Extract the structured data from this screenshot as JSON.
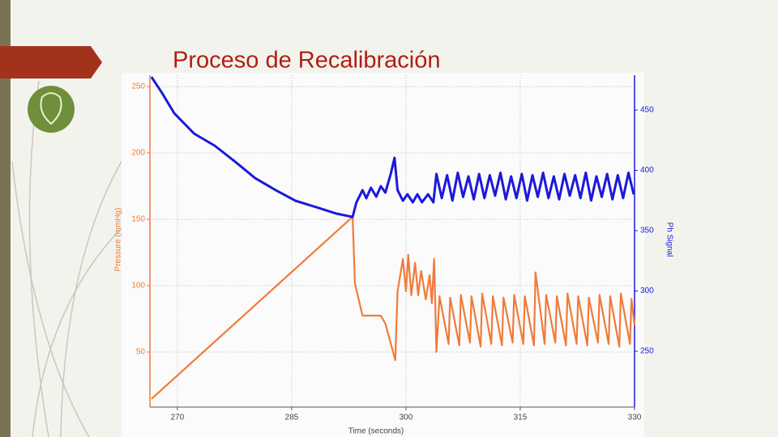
{
  "title": "Proceso de Recalibración",
  "chart_data": {
    "type": "line",
    "xlabel": "Time (seconds)",
    "ylabel": "Pressure (mmHg)",
    "y2label": "Ph Signal",
    "xlim": [
      266.4,
      330
    ],
    "xticks": [
      270,
      285,
      300,
      315,
      330
    ],
    "ylim": [
      8.5,
      258.5
    ],
    "yticks": [
      50,
      100,
      150,
      200,
      250
    ],
    "y2lim": [
      203.7,
      478.9
    ],
    "y2ticks": [
      250,
      300,
      350,
      400,
      450
    ],
    "grid": true,
    "series": [
      {
        "color": "#f07b3a",
        "x": [
          266.6,
          293.0,
          293.3,
          294.3,
          296.7,
          297.3,
          298.6,
          298.9,
          299.6,
          300.0,
          300.3,
          300.7,
          301.2,
          301.6,
          302.0,
          302.6,
          303.1,
          303.4,
          303.7,
          304.0,
          304.4,
          305.6,
          305.8,
          307.0,
          307.2,
          308.4,
          308.6,
          309.8,
          310.0,
          311.2,
          311.4,
          312.6,
          312.8,
          314.0,
          314.2,
          315.4,
          315.6,
          316.8,
          317.0,
          318.2,
          318.4,
          319.6,
          319.8,
          321.0,
          321.2,
          322.4,
          322.6,
          323.8,
          324.0,
          325.2,
          325.4,
          326.6,
          326.8,
          328.0,
          328.2,
          329.4,
          329.6,
          330.0
        ],
        "values": [
          14.6,
          151.8,
          101.8,
          77.4,
          77.4,
          71.3,
          43.9,
          95.7,
          120.1,
          95.7,
          123.2,
          92.7,
          117.1,
          92.7,
          111.0,
          89.6,
          107.9,
          86.6,
          120.1,
          50.0,
          92,
          56,
          91,
          55,
          93,
          57,
          92,
          54,
          94,
          56,
          92,
          55,
          91,
          57,
          93,
          56,
          92,
          55,
          110,
          56,
          93,
          57,
          92,
          55,
          94,
          56,
          92,
          55,
          91,
          57,
          93,
          56,
          92,
          54,
          94,
          56,
          90,
          70
        ]
      },
      {
        "color": "#1a1adb",
        "axis": "y2",
        "x": [
          266.6,
          268.0,
          269.6,
          272.2,
          274.9,
          277.6,
          280.2,
          282.9,
          285.5,
          288.2,
          290.9,
          293.0,
          293.5,
          294.3,
          294.8,
          295.4,
          296.1,
          296.7,
          297.3,
          298.0,
          298.5,
          298.9,
          299.6,
          300.2,
          300.9,
          301.5,
          302.1,
          302.9,
          303.6,
          304.0,
          304.7,
          305.4,
          306.1,
          306.8,
          307.5,
          308.2,
          308.9,
          309.6,
          310.3,
          311.0,
          311.7,
          312.4,
          313.1,
          313.8,
          314.5,
          315.2,
          315.9,
          316.6,
          317.3,
          318.0,
          318.7,
          319.4,
          320.1,
          320.8,
          321.5,
          322.2,
          322.9,
          323.6,
          324.3,
          325.0,
          325.7,
          326.4,
          327.1,
          327.8,
          328.5,
          329.2,
          329.9
        ],
        "values": [
          477.5,
          464.1,
          447.3,
          430.5,
          420.5,
          407.1,
          393.6,
          383.6,
          374.8,
          369.5,
          364.1,
          361.4,
          373.5,
          383.6,
          376.9,
          385.6,
          378.2,
          386.9,
          381.6,
          397.0,
          410.4,
          383.6,
          374.8,
          380.2,
          373.5,
          380.2,
          373.5,
          380.2,
          373.5,
          397.0,
          377,
          396,
          375,
          398,
          378,
          395,
          376,
          397,
          377,
          396,
          379,
          398,
          376,
          395,
          377,
          397,
          375,
          396,
          378,
          398,
          377,
          395,
          376,
          397,
          379,
          396,
          377,
          398,
          375,
          395,
          378,
          397,
          376,
          396,
          377,
          398,
          380
        ]
      }
    ]
  }
}
